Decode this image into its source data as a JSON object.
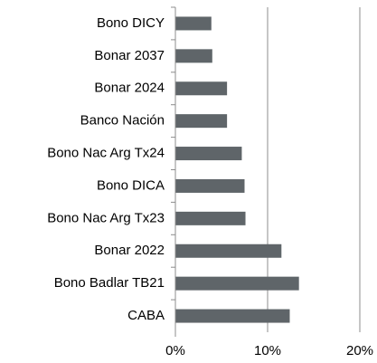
{
  "chart_data": {
    "type": "hbar",
    "categories": [
      "Bono DICY",
      "Bonar 2037",
      "Bonar 2024",
      "Banco Nación",
      "Bono Nac Arg Tx24",
      "Bono DICA",
      "Bono Nac Arg Tx23",
      "Bonar 2022",
      "Bono Badlar TB21",
      "CABA"
    ],
    "values": [
      3.9,
      4.0,
      5.6,
      5.6,
      7.2,
      7.5,
      7.6,
      11.5,
      13.4,
      12.4
    ],
    "color": "#5f6569",
    "xlim": [
      0,
      20
    ],
    "xticks": [
      {
        "value": 0,
        "label": "0%"
      },
      {
        "value": 10,
        "label": "10%"
      },
      {
        "value": 20,
        "label": "20%"
      }
    ],
    "grid": true
  }
}
